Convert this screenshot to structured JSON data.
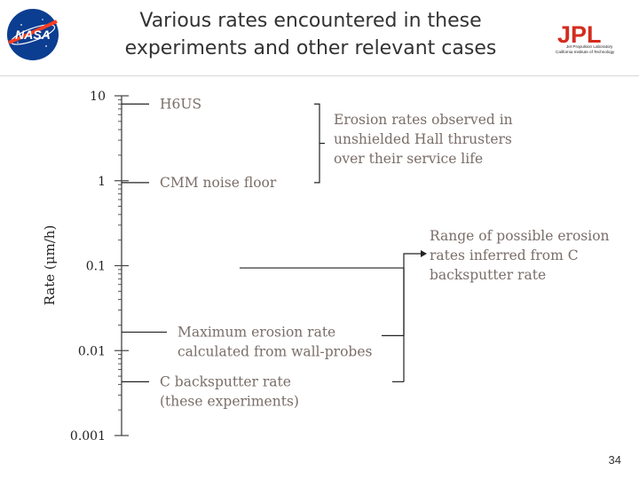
{
  "slide": {
    "title_line1": "Various rates encountered in these",
    "title_line2": "experiments and other relevant cases",
    "nasa_logo_text": "NASA",
    "jpl_logo_text": "JPL",
    "jpl_line1": "Jet Propulsion Laboratory",
    "jpl_line2": "California Institute of Technology",
    "page_number": "34"
  },
  "colors": {
    "nasa_blue": "#0b3d91",
    "nasa_red": "#fc3d21",
    "jpl_red": "#d42c1f",
    "annotation_text": "#7a6e68",
    "axis": "#444444"
  },
  "chart_data": {
    "type": "scale-annotation",
    "ylabel": "Rate (μm/h)",
    "yscale": "log",
    "ylim": [
      0.001,
      10
    ],
    "yticks": [
      {
        "value": 10,
        "label": "10"
      },
      {
        "value": 1,
        "label": "1"
      },
      {
        "value": 0.1,
        "label": "0.1"
      },
      {
        "value": 0.01,
        "label": "0.01"
      },
      {
        "value": 0.001,
        "label": "0.001"
      }
    ],
    "markers": [
      {
        "name": "h6us",
        "value": 8.0,
        "label_lines": [
          "H6US"
        ]
      },
      {
        "name": "cmm-noise-floor",
        "value": 0.95,
        "label_lines": [
          "CMM noise floor"
        ]
      },
      {
        "name": "max-erosion-wall-probes",
        "value": 0.0165,
        "label_lines": [
          "Maximum erosion rate",
          "calculated from wall-probes"
        ]
      },
      {
        "name": "c-backsputter",
        "value": 0.0043,
        "label_lines": [
          "C backsputter rate",
          "(these experiments)"
        ]
      }
    ],
    "range_annotations": [
      {
        "name": "unshielded-hall-erosion",
        "from": 0.95,
        "to": 8.0,
        "label_lines": [
          "Erosion rates observed in",
          "unshielded Hall thrusters",
          "over their service life"
        ]
      },
      {
        "name": "inferred-erosion-range",
        "from": 0.0043,
        "to": 0.094,
        "label_lines": [
          "Range of possible erosion",
          "rates inferred from C",
          "backsputter rate"
        ]
      }
    ]
  }
}
